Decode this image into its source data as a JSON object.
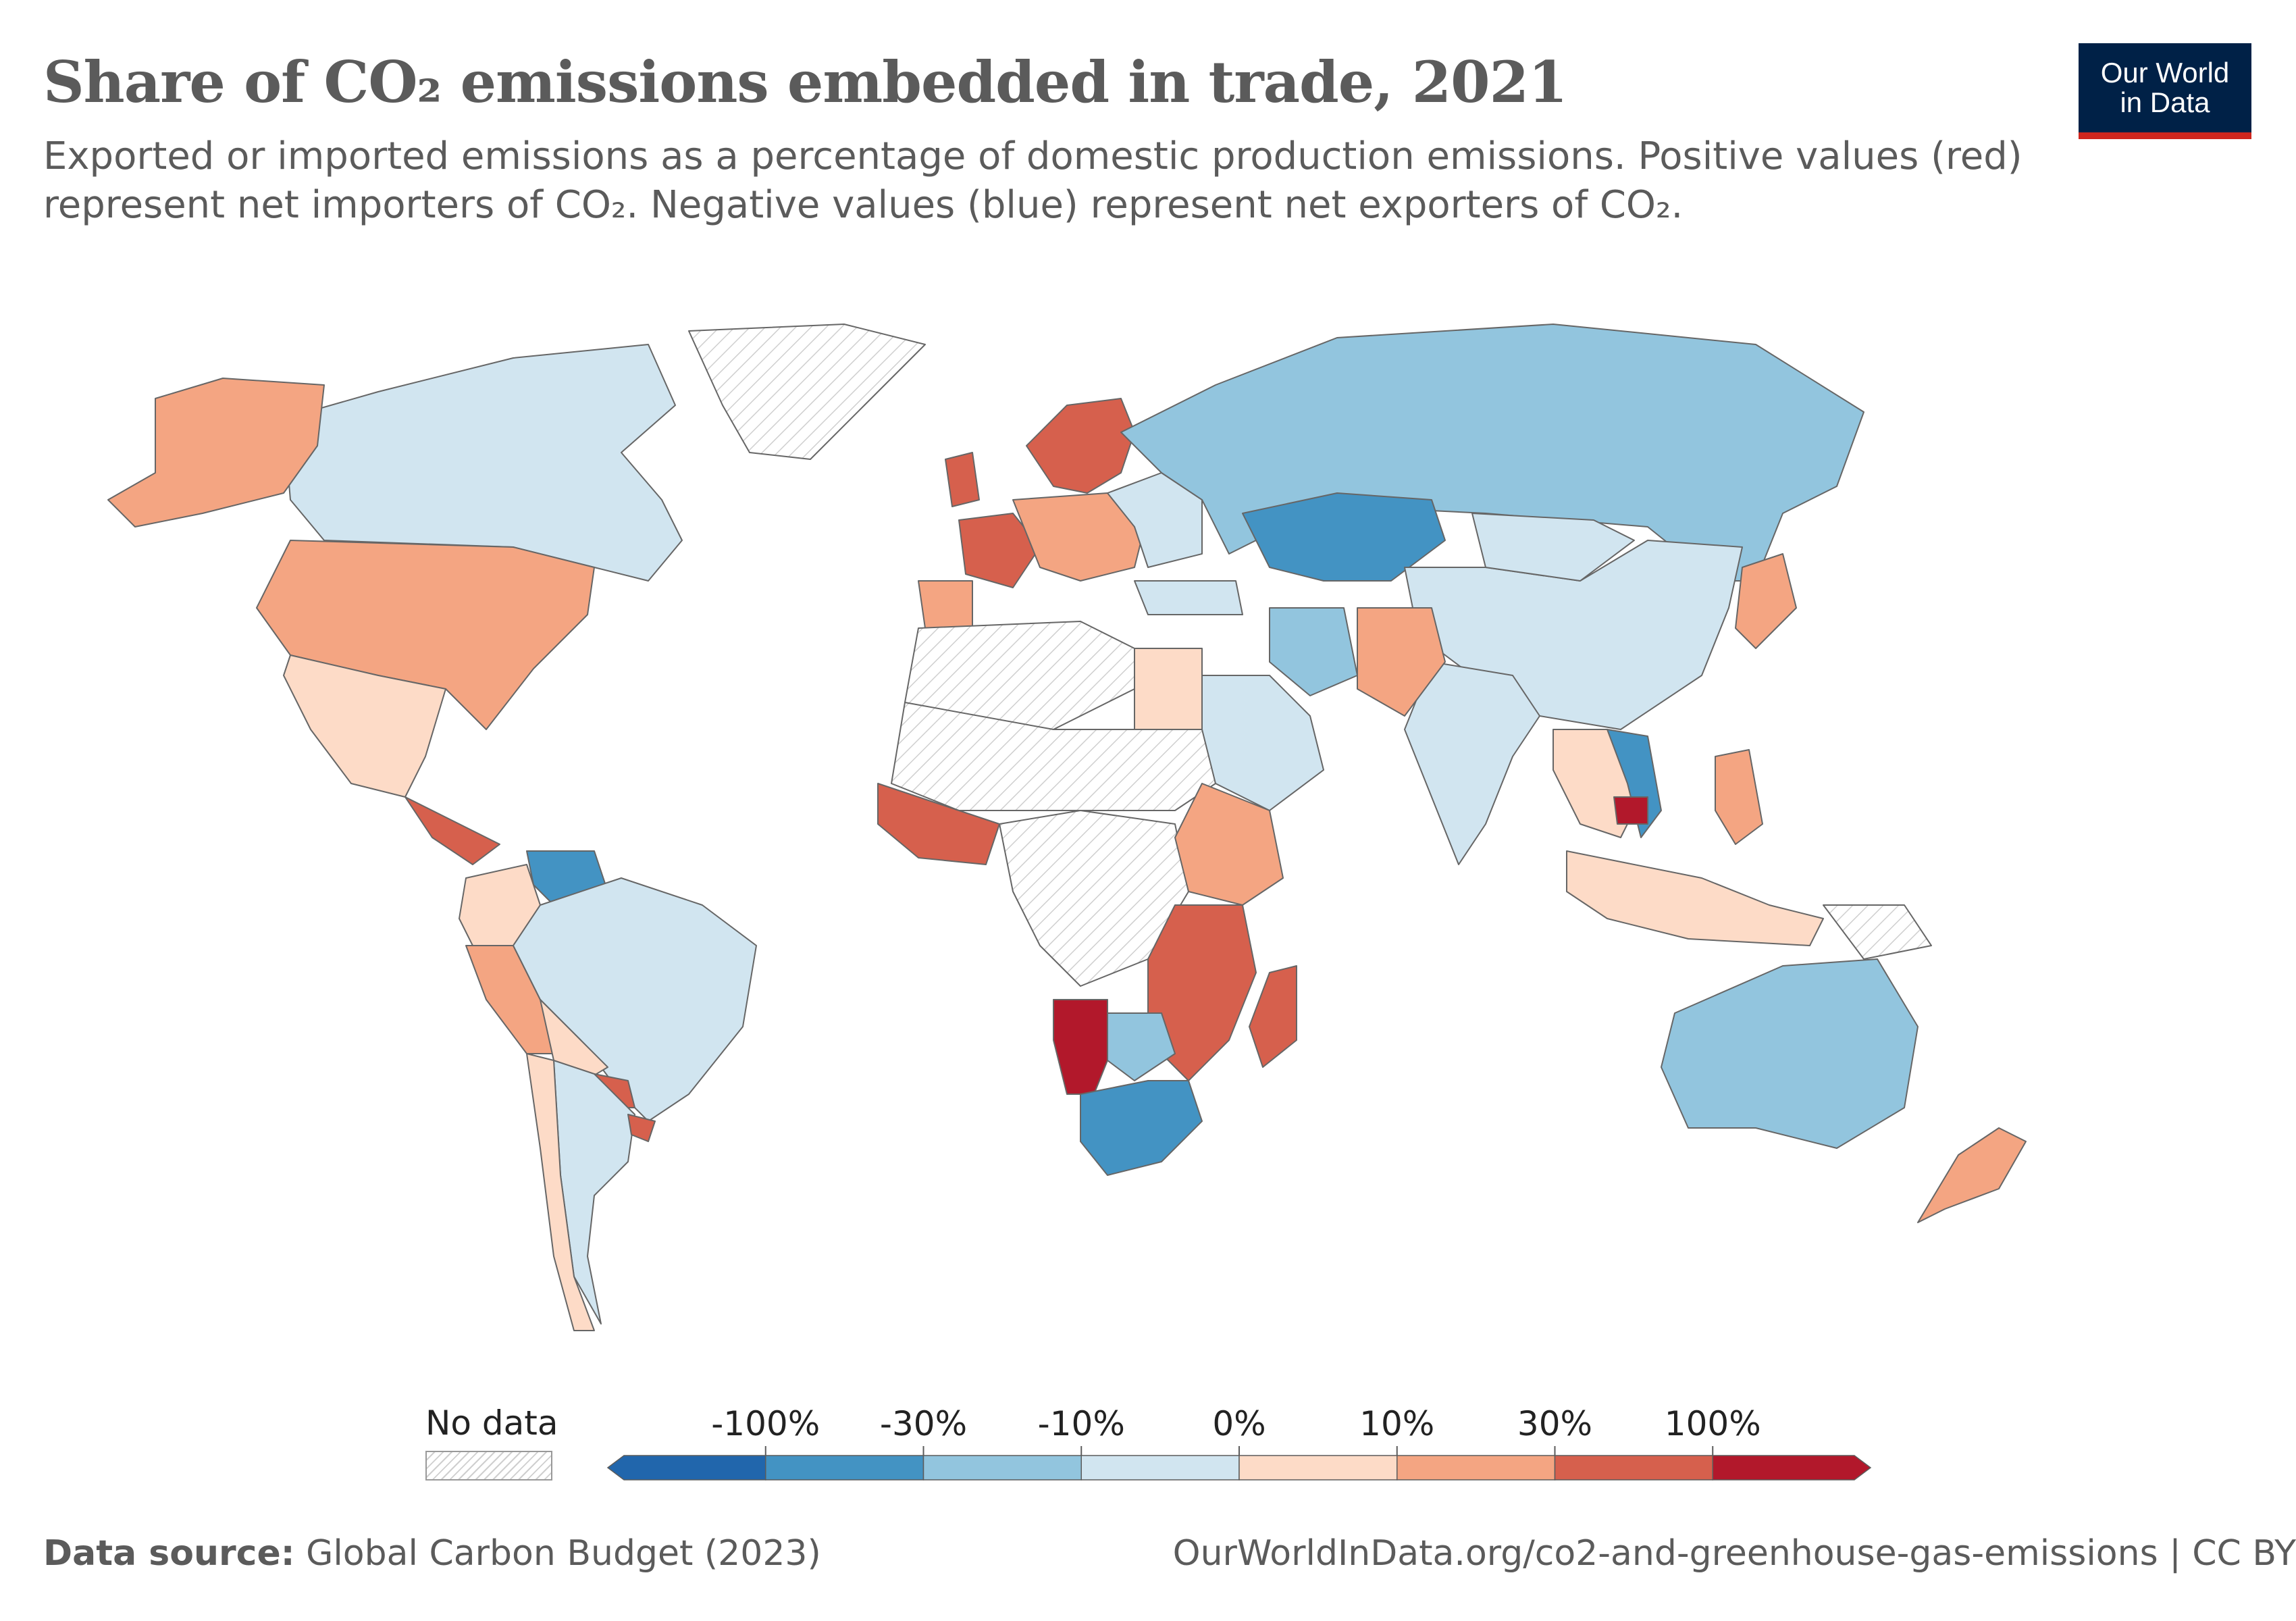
{
  "header": {
    "title": "Share of CO₂ emissions embedded in trade, 2021",
    "subtitle": "Exported or imported emissions as a percentage of domestic production emissions. Positive values (red) represent net importers of CO₂. Negative values (blue) represent net exporters of CO₂."
  },
  "logo": {
    "line1": "Our World",
    "line2": "in Data",
    "bg": "#002147",
    "accent": "#ce261e"
  },
  "legend": {
    "no_data_label": "No data",
    "ticks": [
      "-100%",
      "-30%",
      "-10%",
      "0%",
      "10%",
      "30%",
      "100%"
    ],
    "colors": [
      "#2166ac",
      "#4393c3",
      "#92c5de",
      "#d1e5f0",
      "#fddbc7",
      "#f4a582",
      "#d6604d",
      "#b2182b"
    ]
  },
  "footer": {
    "source_label": "Data source:",
    "source_value": "Global Carbon Budget (2023)",
    "url": "OurWorldInData.org/co2-and-greenhouse-gas-emissions | CC BY"
  },
  "map_regions": [
    {
      "id": "canada",
      "bin": 3
    },
    {
      "id": "usa",
      "bin": 5
    },
    {
      "id": "alaska",
      "bin": 5
    },
    {
      "id": "greenland",
      "bin": -1
    },
    {
      "id": "mexico",
      "bin": 4
    },
    {
      "id": "central-america",
      "bin": 6
    },
    {
      "id": "venezuela",
      "bin": 1
    },
    {
      "id": "colombia",
      "bin": 4
    },
    {
      "id": "peru",
      "bin": 5
    },
    {
      "id": "brazil",
      "bin": 3
    },
    {
      "id": "bolivia",
      "bin": 4
    },
    {
      "id": "paraguay",
      "bin": 6
    },
    {
      "id": "argentina",
      "bin": 3
    },
    {
      "id": "chile",
      "bin": 4
    },
    {
      "id": "uruguay",
      "bin": 6
    },
    {
      "id": "scandinavia",
      "bin": 6
    },
    {
      "id": "uk",
      "bin": 6
    },
    {
      "id": "france",
      "bin": 6
    },
    {
      "id": "iberia",
      "bin": 5
    },
    {
      "id": "central-europe",
      "bin": 5
    },
    {
      "id": "eastern-europe",
      "bin": 3
    },
    {
      "id": "russia",
      "bin": 2
    },
    {
      "id": "kazakhstan",
      "bin": 1
    },
    {
      "id": "china",
      "bin": 3
    },
    {
      "id": "mongolia",
      "bin": 3
    },
    {
      "id": "india",
      "bin": 3
    },
    {
      "id": "pakistan-afghanistan",
      "bin": 5
    },
    {
      "id": "iran",
      "bin": 2
    },
    {
      "id": "arabia",
      "bin": 3
    },
    {
      "id": "turkey",
      "bin": 3
    },
    {
      "id": "north-africa",
      "bin": -1
    },
    {
      "id": "sahel",
      "bin": -1
    },
    {
      "id": "egypt",
      "bin": 4
    },
    {
      "id": "west-africa",
      "bin": 6
    },
    {
      "id": "central-africa",
      "bin": -1
    },
    {
      "id": "east-africa",
      "bin": 5
    },
    {
      "id": "southeast-africa",
      "bin": 6
    },
    {
      "id": "namibia",
      "bin": 7
    },
    {
      "id": "south-africa",
      "bin": 1
    },
    {
      "id": "botswana",
      "bin": 2
    },
    {
      "id": "madagascar",
      "bin": 6
    },
    {
      "id": "southeast-asia",
      "bin": 4
    },
    {
      "id": "vietnam",
      "bin": 1
    },
    {
      "id": "cambodia",
      "bin": 7
    },
    {
      "id": "japan",
      "bin": 5
    },
    {
      "id": "philippines",
      "bin": 5
    },
    {
      "id": "indonesia",
      "bin": 4
    },
    {
      "id": "australia",
      "bin": 2
    },
    {
      "id": "new-zealand",
      "bin": 5
    },
    {
      "id": "papua",
      "bin": -1
    }
  ]
}
